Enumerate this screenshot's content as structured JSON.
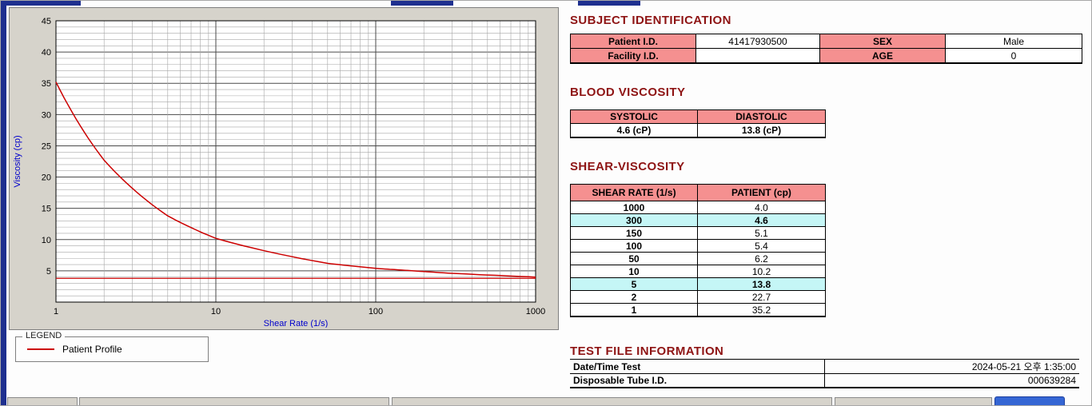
{
  "colors": {
    "heading": "#8e1414",
    "header_bg": "#f59090",
    "highlight_bg": "#c5f6f6",
    "series": "#cc0000",
    "axis_label": "#0000cc",
    "panel_bg": "#d6d3cb"
  },
  "chart_data": {
    "type": "line",
    "title": "",
    "xlabel": "Shear Rate (1/s)",
    "ylabel": "Viscosity (cp)",
    "x_scale": "log",
    "xlim": [
      1,
      1000
    ],
    "ylim": [
      0,
      45
    ],
    "x_ticks": [
      1,
      10,
      100,
      1000
    ],
    "y_ticks": [
      5,
      10,
      15,
      20,
      25,
      30,
      35,
      40,
      45
    ],
    "grid": "on",
    "series": [
      {
        "name": "Patient Profile",
        "color": "#cc0000",
        "x": [
          1,
          2,
          5,
          10,
          50,
          100,
          150,
          300,
          1000
        ],
        "y": [
          35.2,
          22.7,
          13.8,
          10.2,
          6.2,
          5.4,
          5.1,
          4.6,
          4.0
        ]
      }
    ],
    "baseline": {
      "y": 3.8,
      "color": "#cc0000"
    },
    "legend": {
      "label": "LEGEND",
      "position": "below-left",
      "entries": [
        {
          "label": "Patient Profile",
          "color": "#cc0000"
        }
      ]
    }
  },
  "subject_identification": {
    "title": "SUBJECT IDENTIFICATION",
    "rows": [
      {
        "label1": "Patient I.D.",
        "value1": "41417930500",
        "label2": "SEX",
        "value2": "Male"
      },
      {
        "label1": "Facility I.D.",
        "value1": "",
        "label2": "AGE",
        "value2": "0"
      }
    ]
  },
  "blood_viscosity": {
    "title": "BLOOD VISCOSITY",
    "headers": [
      "SYSTOLIC",
      "DIASTOLIC"
    ],
    "values": [
      "4.6 (cP)",
      "13.8 (cP)"
    ]
  },
  "shear_viscosity": {
    "title": "SHEAR-VISCOSITY",
    "headers": [
      "SHEAR RATE (1/s)",
      "PATIENT (cp)"
    ],
    "rows": [
      {
        "rate": "1000",
        "value": "4.0",
        "highlight": false
      },
      {
        "rate": "300",
        "value": "4.6",
        "highlight": true
      },
      {
        "rate": "150",
        "value": "5.1",
        "highlight": false
      },
      {
        "rate": "100",
        "value": "5.4",
        "highlight": false
      },
      {
        "rate": "50",
        "value": "6.2",
        "highlight": false
      },
      {
        "rate": "10",
        "value": "10.2",
        "highlight": false
      },
      {
        "rate": "5",
        "value": "13.8",
        "highlight": true
      },
      {
        "rate": "2",
        "value": "22.7",
        "highlight": false
      },
      {
        "rate": "1",
        "value": "35.2",
        "highlight": false
      }
    ]
  },
  "test_file_information": {
    "title": "TEST FILE INFORMATION",
    "rows": [
      {
        "label": "Date/Time Test",
        "value": "2024-05-21  오후 1:35:00"
      },
      {
        "label": "Disposable Tube I.D.",
        "value": "000639284"
      }
    ]
  }
}
